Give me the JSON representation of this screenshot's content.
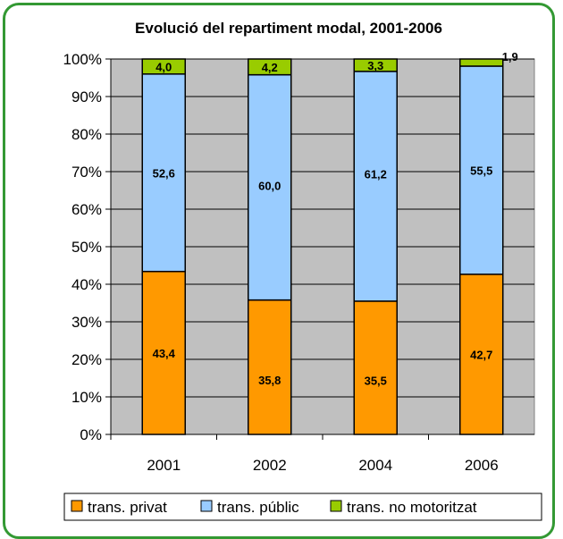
{
  "chart_data": {
    "type": "bar",
    "stacked": true,
    "title": "Evolució del repartiment modal, 2001-2006",
    "categories": [
      "2001",
      "2002",
      "2004",
      "2006"
    ],
    "series": [
      {
        "name": "trans. privat",
        "color": "#FF9900",
        "values": [
          43.4,
          35.8,
          35.5,
          42.7
        ],
        "labels": [
          "43,4",
          "35,8",
          "35,5",
          "42,7"
        ]
      },
      {
        "name": "trans. públic",
        "color": "#99CCFF",
        "values": [
          52.6,
          60.0,
          61.2,
          55.5
        ],
        "labels": [
          "52,6",
          "60,0",
          "61,2",
          "55,5"
        ]
      },
      {
        "name": "trans. no motoritzat",
        "color": "#99CC00",
        "values": [
          4.0,
          4.2,
          3.3,
          1.9
        ],
        "labels": [
          "4,0",
          "4,2",
          "3,3",
          "1,9"
        ]
      }
    ],
    "ylim": [
      0,
      100
    ],
    "yticks": [
      "0%",
      "10%",
      "20%",
      "30%",
      "40%",
      "50%",
      "60%",
      "70%",
      "80%",
      "90%",
      "100%"
    ],
    "grid": true,
    "plot_background": "#C0C0C0",
    "legend_position": "bottom"
  }
}
